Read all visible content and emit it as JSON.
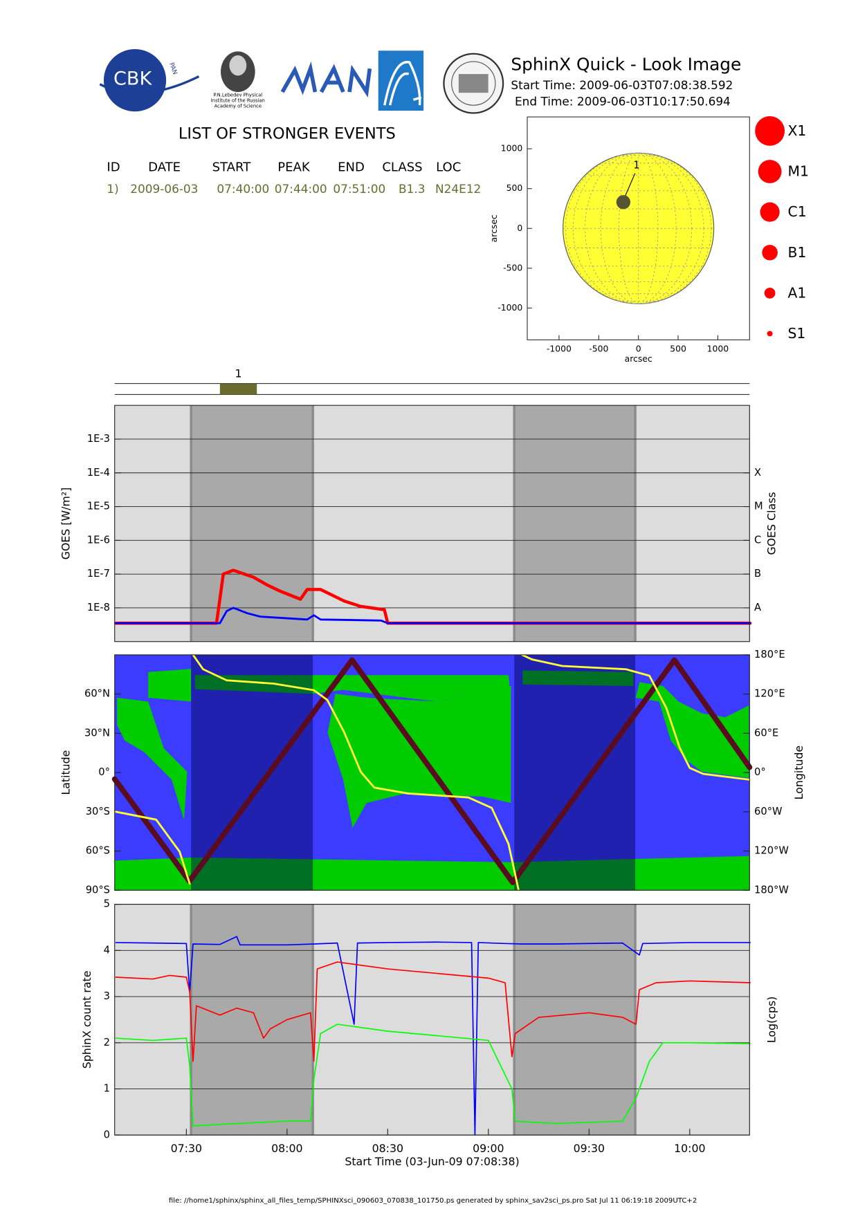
{
  "header": {
    "logo_text": "CBK",
    "logo_subtext": "PAN",
    "institute": [
      "P.N.Lebedev Physical",
      "Institute of the Russian",
      "Academy of Science"
    ],
    "title": "SphinX Quick - Look Image",
    "start_time": "Start Time: 2009-06-03T07:08:38.592",
    "end_time": "End Time: 2009-06-03T10:17:50.694"
  },
  "events": {
    "title": "LIST OF STRONGER EVENTS",
    "columns": [
      "ID",
      "DATE",
      "START",
      "PEAK",
      "END",
      "CLASS",
      "LOC"
    ],
    "rows": [
      [
        "1)",
        "2009-06-03",
        "07:40:00",
        "07:44:00",
        "07:51:00",
        "B1.3",
        "N24E12"
      ]
    ],
    "strip_labels": [
      "1"
    ],
    "color": "#6b6b2e"
  },
  "shaded_intervals": [
    [
      "07:31:24",
      "08:07:42"
    ],
    [
      "09:07:42",
      "09:43:46"
    ]
  ],
  "chart_data": [
    {
      "type": "solar-disk",
      "xlabel": "arcsec",
      "ylabel": "arcsec",
      "xlim": [
        -1400,
        1400
      ],
      "ylim": [
        -1400,
        1400
      ],
      "xticks": [
        -1000,
        -500,
        0,
        500,
        1000
      ],
      "yticks": [
        -1000,
        -500,
        0,
        500,
        1000
      ],
      "sun_radius": 950,
      "sun_color": "#ffff33",
      "events": [
        {
          "label": "1",
          "x": -190,
          "y": 330
        }
      ],
      "event_color": "#555533",
      "legend": [
        "X1",
        "M1",
        "C1",
        "B1",
        "A1",
        "S1"
      ],
      "legend_color": "#ff0000"
    },
    {
      "type": "line",
      "ylabel": "GOES [W/m²]",
      "y2label": "GOES Class",
      "log": true,
      "grid": true,
      "background": "#dcdcdc",
      "shade_color": "#a9a9a9",
      "shade_opacity": 1,
      "xlim": [
        "07:08:38",
        "10:17:50"
      ],
      "ylim": [
        1e-09,
        0.01
      ],
      "yticks": [
        {
          "value": 1e-08,
          "label": "1E-8"
        },
        {
          "value": 1e-07,
          "label": "1E-7"
        },
        {
          "value": 1e-06,
          "label": "1E-6"
        },
        {
          "value": 1e-05,
          "label": "1E-5"
        },
        {
          "value": 0.0001,
          "label": "1E-4"
        },
        {
          "value": 0.001,
          "label": "1E-3"
        }
      ],
      "y2lim": [
        1e-09,
        0.01
      ],
      "y2ticks": [
        {
          "value": 1e-08,
          "label": "A"
        },
        {
          "value": 1e-07,
          "label": "B"
        },
        {
          "value": 1e-06,
          "label": "C"
        },
        {
          "value": 1e-05,
          "label": "M"
        },
        {
          "value": 0.0001,
          "label": "X"
        }
      ],
      "series": [
        {
          "color": "#ff0000",
          "x": [
            "07:09",
            "07:39",
            "07:41",
            "07:44",
            "07:50",
            "07:54",
            "07:58",
            "08:04",
            "08:06",
            "08:10",
            "08:13",
            "08:17",
            "08:22",
            "08:29",
            "08:30",
            "10:18"
          ],
          "values": [
            3.5e-09,
            3.5e-09,
            1e-07,
            1.3e-07,
            8.1e-08,
            4.8e-08,
            3.1e-08,
            1.8e-08,
            3.5e-08,
            3.5e-08,
            2.5e-08,
            1.6e-08,
            1.1e-08,
            8.8e-09,
            3.5e-09,
            3.5e-09
          ]
        },
        {
          "color": "#0000ff",
          "x": [
            "07:09",
            "07:40",
            "07:42",
            "07:44",
            "07:48",
            "07:52",
            "08:06",
            "08:08",
            "08:10",
            "08:28",
            "08:30",
            "10:18"
          ],
          "values": [
            3.5e-09,
            3.5e-09,
            8e-09,
            1e-08,
            7e-09,
            5.5e-09,
            4.5e-09,
            6e-09,
            4.5e-09,
            4.2e-09,
            3.5e-09,
            3.5e-09
          ]
        }
      ]
    },
    {
      "type": "track",
      "ylabel": "Latitude",
      "y2label": "Longitude",
      "background": "#3c3cff",
      "coverage_color": "#00cc00",
      "shade_color": "#000050",
      "shade_opacity": 0.45,
      "xlim": [
        "07:08:38",
        "10:17:50"
      ],
      "ylim": [
        -90,
        90
      ],
      "yticks": [
        {
          "value": -90,
          "label": "90°S"
        },
        {
          "value": -60,
          "label": "60°S"
        },
        {
          "value": -30,
          "label": "30°S"
        },
        {
          "value": 0,
          "label": "0°"
        },
        {
          "value": 30,
          "label": "30°N"
        },
        {
          "value": 60,
          "label": "60°N"
        }
      ],
      "y2lim": [
        -180,
        180
      ],
      "y2ticks": [
        {
          "value": -180,
          "label": "180°W"
        },
        {
          "value": -120,
          "label": "120°W"
        },
        {
          "value": -60,
          "label": "60°W"
        },
        {
          "value": 0,
          "label": "0°"
        },
        {
          "value": 60,
          "label": "60°E"
        },
        {
          "value": 120,
          "label": "120°E"
        },
        {
          "value": 180,
          "label": "180°E"
        }
      ],
      "series": [
        {
          "color": "#5a0d20",
          "x": [
            "07:08:38",
            "07:30:56",
            "08:19:22",
            "09:07:14",
            "09:55:26",
            "10:17:50"
          ],
          "values": [
            -5,
            -83,
            86,
            -84,
            86,
            4
          ]
        },
        {
          "color": "#ffff33",
          "axis": "y2",
          "x": [
            "07:09",
            "07:21",
            "07:28",
            "07:31",
            "07:32",
            "07:32",
            "07:35",
            "07:42",
            "07:56",
            "08:08",
            "08:12",
            "08:17",
            "08:22",
            "08:26",
            "08:36",
            "08:54",
            "09:01",
            "09:06",
            "09:09",
            "09:10",
            "09:10",
            "09:13",
            "09:22",
            "09:41",
            "09:48",
            "09:53",
            "09:57",
            "10:00",
            "10:04",
            "10:18"
          ],
          "values": [
            -60,
            -72,
            -121,
            -170,
            null,
            180,
            158,
            141,
            136,
            126,
            111,
            62,
            1,
            -23,
            -32,
            -38,
            -54,
            -109,
            -180,
            null,
            180,
            173,
            163,
            158,
            148,
            99,
            38,
            7,
            -2,
            -11
          ]
        }
      ]
    },
    {
      "type": "line",
      "ylabel": "SphinX count rate",
      "y2label": "Log(cps)",
      "xlabel": "Start Time (03-Jun-09 07:08:38)",
      "grid": true,
      "background": "#dcdcdc",
      "shade_color": "#a9a9a9",
      "shade_opacity": 1,
      "xlim": [
        "07:08:38",
        "10:17:50"
      ],
      "xticks": [
        "07:30",
        "08:00",
        "08:30",
        "09:00",
        "09:30",
        "10:00"
      ],
      "ylim": [
        0,
        5
      ],
      "yticks": [
        0,
        1,
        2,
        3,
        4,
        5
      ],
      "series": [
        {
          "color": "#0000ff",
          "x": [
            "07:09",
            "07:20",
            "07:30",
            "07:31",
            "07:32",
            "07:40",
            "07:45",
            "07:46",
            "08:00",
            "08:08",
            "08:15",
            "08:20",
            "08:21",
            "08:30",
            "08:45",
            "08:55",
            "08:56",
            "08:57",
            "09:05",
            "09:10",
            "09:20",
            "09:40",
            "09:45",
            "09:46",
            "10:00",
            "10:18"
          ],
          "values": [
            4.17,
            4.16,
            4.15,
            3.1,
            4.14,
            4.13,
            4.3,
            4.12,
            4.12,
            4.14,
            4.16,
            2.4,
            4.16,
            4.17,
            4.18,
            4.17,
            0.0,
            4.17,
            4.15,
            4.14,
            4.14,
            4.16,
            3.9,
            4.15,
            4.17,
            4.17
          ]
        },
        {
          "color": "#ff0000",
          "x": [
            "07:09",
            "07:20",
            "07:25",
            "07:30",
            "07:31",
            "07:32",
            "07:33",
            "07:40",
            "07:45",
            "07:50",
            "07:53",
            "07:55",
            "08:00",
            "08:07",
            "08:08",
            "08:09",
            "08:15",
            "08:30",
            "08:45",
            "09:00",
            "09:05",
            "09:07",
            "09:08",
            "09:15",
            "09:30",
            "09:40",
            "09:44",
            "09:45",
            "09:50",
            "10:00",
            "10:18"
          ],
          "values": [
            3.42,
            3.38,
            3.46,
            3.42,
            3.1,
            1.6,
            2.8,
            2.6,
            2.75,
            2.65,
            2.1,
            2.3,
            2.5,
            2.65,
            1.6,
            3.6,
            3.75,
            3.6,
            3.5,
            3.4,
            3.3,
            1.7,
            2.2,
            2.55,
            2.65,
            2.55,
            2.4,
            3.15,
            3.3,
            3.34,
            3.3
          ]
        },
        {
          "color": "#00ff00",
          "x": [
            "07:09",
            "07:20",
            "07:30",
            "07:31",
            "07:32",
            "07:45",
            "08:00",
            "08:07",
            "08:08",
            "08:10",
            "08:15",
            "08:30",
            "08:45",
            "09:00",
            "09:07",
            "09:08",
            "09:20",
            "09:40",
            "09:44",
            "09:48",
            "09:52",
            "10:00",
            "10:18"
          ],
          "values": [
            2.1,
            2.05,
            2.1,
            1.5,
            0.2,
            0.25,
            0.3,
            0.3,
            1.2,
            2.2,
            2.4,
            2.25,
            2.15,
            2.05,
            1.0,
            0.3,
            0.25,
            0.3,
            0.8,
            1.6,
            2.0,
            2.0,
            1.98
          ]
        }
      ]
    }
  ],
  "footer": "file: //home1/sphinx/sphinx_all_files_temp/SPHINXsci_090603_070838_101750.ps generated by sphinx_sav2sci_ps.pro Sat Jul 11 06:19:18 2009UTC+2"
}
